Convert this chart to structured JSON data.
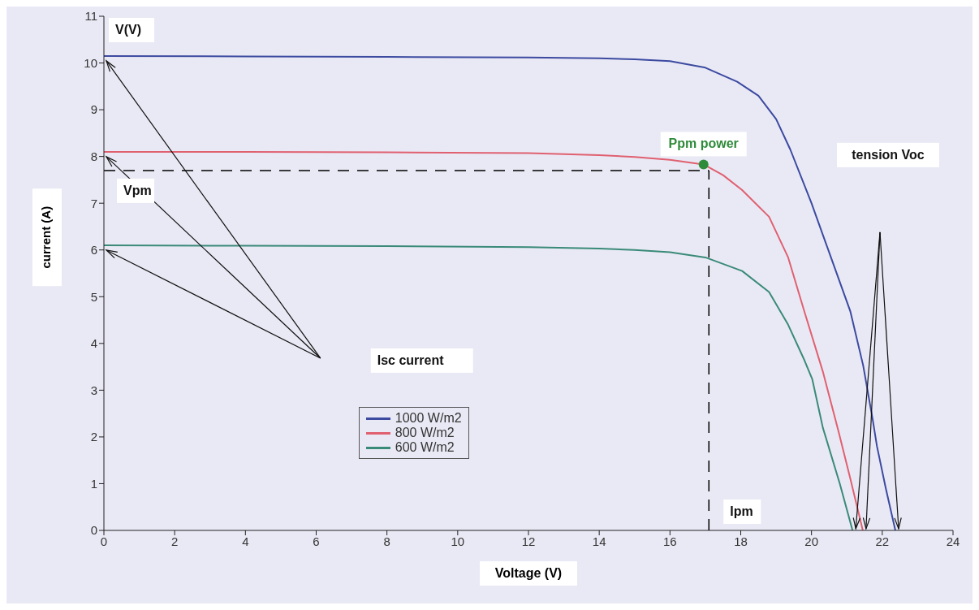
{
  "chart_data": {
    "type": "line",
    "xlabel": "Voltage (V)",
    "ylabel": "current (A)",
    "xlim": [
      0,
      24
    ],
    "xticks": [
      0,
      2,
      4,
      6,
      8,
      10,
      12,
      14,
      16,
      18,
      20,
      22,
      24
    ],
    "ylim": [
      0,
      11
    ],
    "yticks": [
      0,
      1,
      2,
      3,
      4,
      5,
      6,
      7,
      8,
      9,
      10,
      11
    ],
    "grid": false,
    "legend": "bottom left",
    "marker": "none",
    "line_style": "solid",
    "series": [
      {
        "name": "1000 W/m2",
        "color": "#3c4aa0",
        "x": [
          0,
          4,
          8,
          12,
          14,
          15,
          16,
          17,
          17.9,
          18.5,
          19,
          19.4,
          20,
          20.55,
          21.1,
          21.46,
          21.73,
          21.85,
          22.1,
          22.37
        ],
        "values": [
          10.15,
          10.14,
          10.13,
          10.12,
          10.1,
          10.08,
          10.04,
          9.9,
          9.6,
          9.3,
          8.8,
          8.15,
          7,
          5.84,
          4.68,
          3.53,
          2.37,
          1.8,
          0.9,
          0
        ]
      },
      {
        "name": "800 W/m2",
        "color": "#e06070",
        "x": [
          0,
          4,
          8,
          12,
          14,
          15,
          16,
          16.95,
          17.5,
          18.04,
          18.8,
          19.34,
          19.8,
          20.32,
          20.77,
          21.1,
          21.45
        ],
        "values": [
          8.1,
          8.1,
          8.09,
          8.07,
          8.03,
          7.99,
          7.93,
          7.83,
          7.6,
          7.28,
          6.71,
          5.84,
          4.68,
          3.4,
          2.1,
          1.1,
          0
        ]
      },
      {
        "name": "600 W/m2",
        "color": "#3a8a78",
        "x": [
          0,
          4,
          8,
          12,
          14,
          15,
          16,
          17,
          18.04,
          18.8,
          19.34,
          19.8,
          20.02,
          20.32,
          20.8,
          21.16
        ],
        "values": [
          6.1,
          6.09,
          6.08,
          6.06,
          6.03,
          6,
          5.95,
          5.84,
          5.55,
          5.1,
          4.4,
          3.64,
          3.24,
          2.2,
          1,
          0
        ]
      },
      {
        "type": "scatter",
        "name": "Ppm power",
        "color": "#2e8b3a",
        "marker": "circle",
        "x": [
          16.95
        ],
        "values": [
          7.83
        ]
      }
    ],
    "ref_lines": [
      {
        "axis": "y",
        "value": 7.7,
        "label": "Vpm",
        "color": "#000000",
        "line_style": "dashed"
      },
      {
        "axis": "x",
        "value": 17.1,
        "label": "Ipm",
        "color": "#000000",
        "line_style": "dashed"
      }
    ],
    "annotations": [
      "V(V)",
      "Isc current",
      "tension Voc"
    ]
  }
}
